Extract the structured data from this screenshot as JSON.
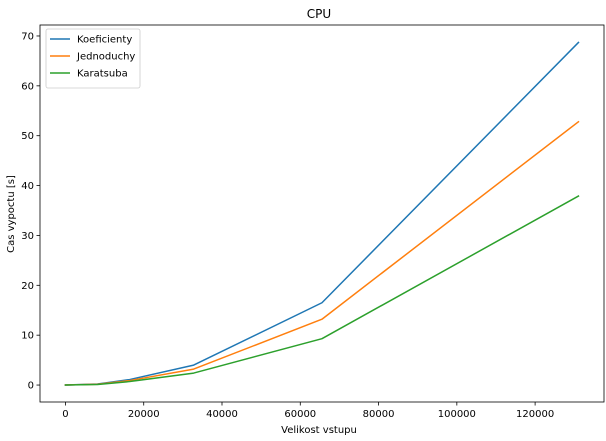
{
  "chart_data": {
    "type": "line",
    "title": "CPU",
    "xlabel": "Velikost vstupu",
    "ylabel": "Cas vypoctu [s]",
    "xlim": [
      -6500,
      137600
    ],
    "ylim": [
      -3.4,
      72.2
    ],
    "xticks": [
      0,
      20000,
      40000,
      60000,
      80000,
      100000,
      120000
    ],
    "yticks": [
      0,
      10,
      20,
      30,
      40,
      50,
      60,
      70
    ],
    "grid": false,
    "legend_position": "top-left",
    "x": [
      0,
      8192,
      16384,
      32768,
      65536,
      131072
    ],
    "series": [
      {
        "name": "Koeficienty",
        "color": "#1f77b4",
        "values": [
          0.0,
          0.2,
          1.1,
          4.0,
          16.5,
          68.7
        ]
      },
      {
        "name": "Jednoduchy",
        "color": "#ff7f0e",
        "values": [
          0.0,
          0.15,
          0.9,
          3.2,
          13.2,
          52.8
        ]
      },
      {
        "name": "Karatsuba",
        "color": "#2ca02c",
        "values": [
          0.0,
          0.1,
          0.7,
          2.4,
          9.3,
          37.9
        ]
      }
    ]
  }
}
